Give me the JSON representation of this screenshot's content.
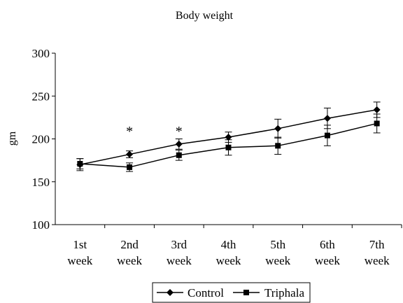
{
  "chart_data": {
    "type": "line",
    "title": "Body weight",
    "ylabel": "gm",
    "xlabel": "",
    "ylim": [
      100,
      300
    ],
    "yticks": [
      100,
      150,
      200,
      250,
      300
    ],
    "categories": [
      [
        "1st",
        "week"
      ],
      [
        "2nd",
        "week"
      ],
      [
        "3rd",
        "week"
      ],
      [
        "4th",
        "week"
      ],
      [
        "5th",
        "week"
      ],
      [
        "6th",
        "week"
      ],
      [
        "7th",
        "week"
      ]
    ],
    "grid": false,
    "legend_position": "bottom",
    "series": [
      {
        "name": "Control",
        "marker": "diamond",
        "values": [
          170,
          182,
          194,
          202,
          212,
          224,
          234
        ],
        "errors": [
          7,
          4,
          6,
          6,
          11,
          12,
          9
        ]
      },
      {
        "name": "Triphala",
        "marker": "square",
        "values": [
          171,
          167,
          181,
          190,
          192,
          204,
          218
        ],
        "errors": [
          6,
          5,
          6,
          9,
          10,
          12,
          11
        ]
      }
    ],
    "annotations": [
      {
        "text": "*",
        "category_index": 1
      },
      {
        "text": "*",
        "category_index": 2
      }
    ]
  }
}
